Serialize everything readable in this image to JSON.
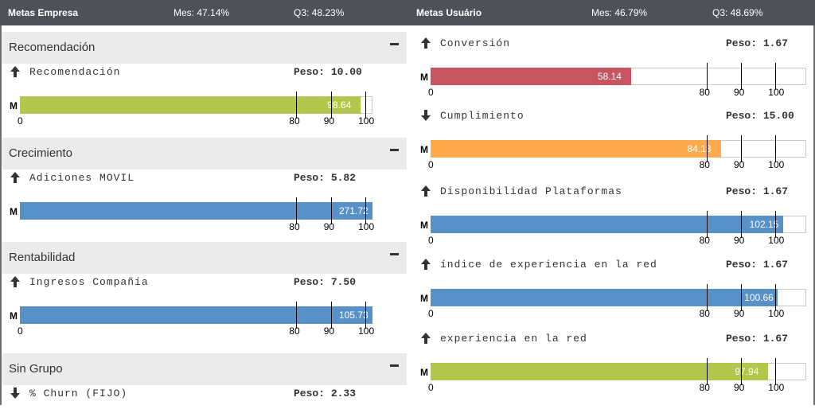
{
  "header": {
    "left_title": "Metas Empresa",
    "left_mes": "Mes: 47.14%",
    "left_q3": "Q3: 48.23%",
    "right_title": "Metas Usuário",
    "right_mes": "Mes: 46.79%",
    "right_q3": "Q3: 48.69%"
  },
  "icons": {
    "up": "arrow-up-icon",
    "down": "arrow-down-icon",
    "collapse": "minus-icon"
  },
  "colors": {
    "green": "#b3c74c",
    "blue": "#5891c8",
    "red": "#c65561",
    "orange": "#ffaa4d"
  },
  "left_groups": [
    {
      "title": "Recomendación",
      "metrics": [
        {
          "direction": "up",
          "name": "Recomendación",
          "peso_label": "Peso:",
          "peso": "10.00",
          "m_label": "M",
          "value": 98.64,
          "value_label": "98.64",
          "color": "#b3c74c",
          "ticks": [
            "0",
            "80",
            "90",
            "100"
          ]
        }
      ]
    },
    {
      "title": "Crecimiento",
      "metrics": [
        {
          "direction": "up",
          "name": "Adiciones MOVIL",
          "peso_label": "Peso:",
          "peso": "5.82",
          "m_label": "M",
          "value": 271.72,
          "value_label": "271.72",
          "color": "#5891c8",
          "ticks": [
            "80",
            "90",
            "100"
          ]
        }
      ]
    },
    {
      "title": "Rentabilidad",
      "metrics": [
        {
          "direction": "up",
          "name": "Ingresos Compañía",
          "peso_label": "Peso:",
          "peso": "7.50",
          "m_label": "M",
          "value": 105.73,
          "value_label": "105.73",
          "color": "#5891c8",
          "ticks": [
            "0",
            "80",
            "90",
            "100"
          ]
        }
      ]
    },
    {
      "title": "Sin Grupo",
      "metrics": [
        {
          "direction": "down",
          "name": "% Churn (FIJO)",
          "peso_label": "Peso:",
          "peso": "2.33"
        }
      ]
    }
  ],
  "right_metrics": [
    {
      "direction": "up",
      "name": "Conversión",
      "peso_label": "Peso:",
      "peso": "1.67",
      "m_label": "M",
      "value": 58.14,
      "value_label": "58.14",
      "color": "#c65561",
      "ticks": [
        "0",
        "80",
        "90",
        "100"
      ]
    },
    {
      "direction": "down",
      "name": "Cumplimiento",
      "peso_label": "Peso:",
      "peso": "15.00",
      "m_label": "M",
      "value": 84.13,
      "value_label": "84.13",
      "color": "#ffaa4d",
      "ticks": [
        "0",
        "80",
        "90",
        "100"
      ]
    },
    {
      "direction": "up",
      "name": "Disponibilidad Plataformas",
      "peso_label": "Peso:",
      "peso": "1.67",
      "m_label": "M",
      "value": 102.15,
      "value_label": "102.15",
      "color": "#5891c8",
      "ticks": [
        "0",
        "80",
        "90",
        "100"
      ]
    },
    {
      "direction": "up",
      "name": "índice de experiencia en la red",
      "peso_label": "Peso:",
      "peso": "1.67",
      "m_label": "M",
      "value": 100.66,
      "value_label": "100.66",
      "color": "#5891c8",
      "ticks": [
        "0",
        "80",
        "90",
        "100"
      ]
    },
    {
      "direction": "up",
      "name": "experiencia en la red",
      "peso_label": "Peso:",
      "peso": "1.67",
      "m_label": "M",
      "value": 97.94,
      "value_label": "97.94",
      "color": "#b3c74c",
      "ticks": [
        "0",
        "80",
        "90",
        "100"
      ]
    }
  ]
}
